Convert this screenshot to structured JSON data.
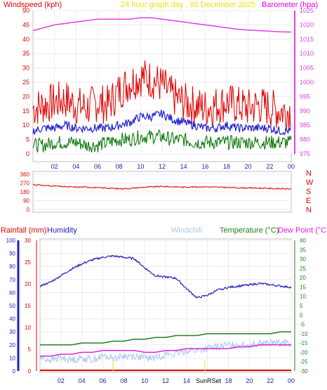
{
  "header": {
    "windspeed_label": "Windspeed (kph)",
    "title": "24 hour graph day , 05 December 2025",
    "barometer_label": "Barometer (hpa)"
  },
  "hours_labels": [
    "02",
    "04",
    "06",
    "08",
    "10",
    "12",
    "14",
    "16",
    "18",
    "20",
    "22",
    "00"
  ],
  "bottom_hours_labels": [
    "02",
    "04",
    "06",
    "08",
    "10",
    "12",
    "14",
    "16",
    "18",
    "20",
    "22",
    "00"
  ],
  "sun_label": "SunRSet",
  "direction_letters": [
    "N",
    "W",
    "S",
    "E",
    "N"
  ],
  "bottom_header": {
    "rainfall_label": "Rainfall (mm)",
    "humidity_label": "Humidity",
    "windchill_label": "Windchill",
    "temperature_label": "Temperature (°C)",
    "dewpoint_label": "Dew Point (°C)"
  },
  "colors": {
    "wind_gust": "#e00000",
    "wind_avg": "#2020d0",
    "wind_low": "#007000",
    "barometer": "#e040e0",
    "direction": "#e03030",
    "humidity": "#2020c0",
    "windchill": "#a8c8ec",
    "temperature": "#208020",
    "dewpoint": "#e020e0",
    "rain": "#e00000"
  },
  "chart_data": [
    {
      "type": "line",
      "title": "24 hour graph day , 05 December 2025",
      "x_hours": [
        0,
        1,
        2,
        3,
        4,
        5,
        6,
        7,
        8,
        9,
        10,
        11,
        12,
        13,
        14,
        15,
        16,
        17,
        18,
        19,
        20,
        21,
        22,
        23,
        24
      ],
      "series": [
        {
          "name": "Windspeed (kph)",
          "axis": "left",
          "ylim": [
            0,
            50
          ],
          "gust_max": [
            16,
            17,
            18,
            19,
            17,
            16,
            18,
            17,
            22,
            25,
            27,
            26,
            24,
            20,
            18,
            17,
            16,
            17,
            18,
            17,
            16,
            17,
            16,
            15,
            15
          ],
          "average": [
            8,
            9,
            9,
            10,
            9,
            9,
            9,
            9,
            10,
            11,
            13,
            13,
            14,
            12,
            11,
            10,
            9,
            9,
            10,
            9,
            9,
            9,
            9,
            8,
            8
          ],
          "minimum": [
            3,
            3,
            4,
            4,
            4,
            3,
            3,
            4,
            5,
            5,
            6,
            6,
            6,
            5,
            5,
            4,
            4,
            4,
            4,
            4,
            4,
            4,
            4,
            4,
            4
          ]
        },
        {
          "name": "Barometer (hpa)",
          "axis": "right",
          "ylim": [
            975,
            1025
          ],
          "values": [
            1018,
            1019,
            1020,
            1020.5,
            1021,
            1021.5,
            1022,
            1022,
            1022,
            1022,
            1022.5,
            1022.5,
            1022,
            1021.5,
            1021,
            1020.5,
            1020,
            1019.5,
            1019,
            1018.5,
            1018.2,
            1018,
            1017.8,
            1017.6,
            1017.5
          ]
        }
      ],
      "y_ticks_left": [
        0,
        5,
        10,
        15,
        20,
        25,
        30,
        35,
        40,
        45,
        50
      ],
      "y_ticks_right": [
        975,
        980,
        985,
        990,
        995,
        1000,
        1005,
        1010,
        1015,
        1020,
        1025
      ]
    },
    {
      "type": "line",
      "name": "Wind direction",
      "ylim": [
        0,
        360
      ],
      "y_ticks": [
        0,
        90,
        180,
        270,
        360
      ],
      "y_tick_labels": [
        "0",
        "90",
        "180",
        "270",
        "360"
      ],
      "values": [
        255,
        245,
        240,
        232,
        228,
        230,
        222,
        218,
        212,
        215,
        225,
        230,
        235,
        232,
        228,
        230,
        232,
        228,
        225,
        222,
        220,
        218,
        215,
        212,
        210
      ]
    },
    {
      "type": "line",
      "series": [
        {
          "name": "Humidity",
          "axis": "outer-left",
          "ylim": [
            0,
            100
          ],
          "values": [
            65,
            68,
            73,
            78,
            82,
            85,
            87,
            88,
            87,
            86,
            79,
            73,
            72,
            71,
            63,
            56,
            58,
            62,
            64,
            65,
            66,
            67,
            66,
            65,
            64
          ]
        },
        {
          "name": "Temperature (°C)",
          "axis": "right",
          "ylim": [
            -30,
            40
          ],
          "values": [
            -16,
            -16,
            -16,
            -16,
            -15,
            -15,
            -15,
            -14,
            -14,
            -13,
            -13,
            -12,
            -12,
            -11,
            -11,
            -11,
            -10,
            -10,
            -10,
            -10,
            -10,
            -10,
            -10,
            -9,
            -9
          ]
        },
        {
          "name": "Dew Point (°C)",
          "axis": "right",
          "ylim": [
            -30,
            40
          ],
          "values": [
            -22,
            -22,
            -21,
            -21,
            -20,
            -20,
            -19,
            -19,
            -19,
            -19,
            -20,
            -20,
            -19,
            -19,
            -18,
            -18,
            -18,
            -18,
            -18,
            -17,
            -17,
            -16,
            -16,
            -16,
            -16
          ]
        },
        {
          "name": "Windchill",
          "axis": "right",
          "ylim": [
            -30,
            40
          ],
          "values": [
            -23,
            -24,
            -23,
            -24,
            -23,
            -24,
            -22,
            -23,
            -22,
            -22,
            -23,
            -23,
            -21,
            -21,
            -19,
            -19,
            -18,
            -17,
            -16,
            -16,
            -16,
            -15,
            -15,
            -15,
            -15
          ]
        },
        {
          "name": "Rainfall (mm)",
          "axis": "inner-left",
          "ylim": [
            0,
            30
          ],
          "values": [
            0,
            0,
            0,
            0,
            0,
            0,
            0,
            0,
            0,
            0,
            0,
            0,
            0,
            0,
            0,
            0,
            0,
            0,
            0,
            0,
            0,
            0,
            0,
            0,
            0
          ]
        }
      ],
      "y_ticks_humidity": [
        0,
        10,
        20,
        30,
        40,
        50,
        60,
        70,
        80,
        90,
        100
      ],
      "y_ticks_rain": [
        0,
        5,
        10,
        15,
        20,
        25,
        30
      ],
      "y_ticks_temp": [
        -30,
        -25,
        -20,
        -15,
        -10,
        -5,
        0,
        5,
        10,
        15,
        20,
        25,
        30,
        35,
        40
      ]
    }
  ]
}
